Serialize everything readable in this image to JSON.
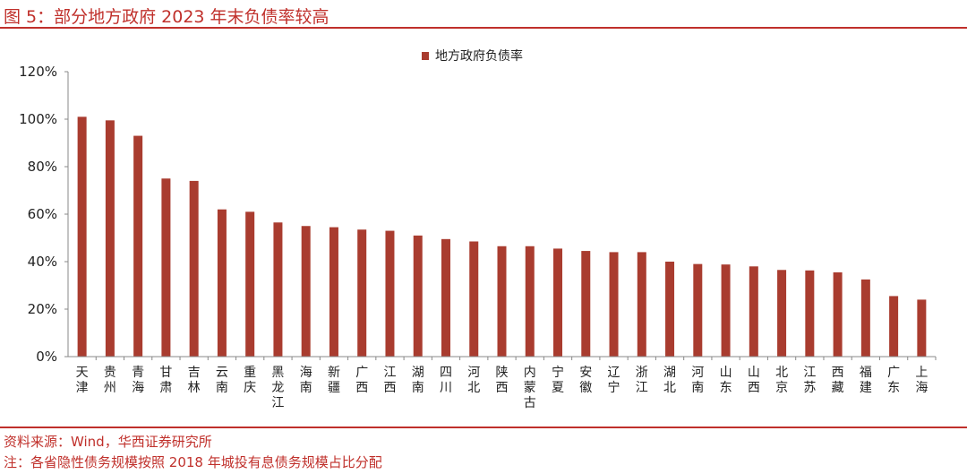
{
  "figure": {
    "title": "图 5：部分地方政府 2023 年末负债率较高",
    "source": "资料来源：Wind，华西证券研究所",
    "note": "注：各省隐性债务规模按照 2018 年城投有息债务规模占比分配"
  },
  "colors": {
    "accent": "#c0302b",
    "bar": "#a93c2f"
  },
  "chart_data": {
    "type": "bar",
    "legend": "地方政府负债率",
    "legend_position": "top",
    "categories": [
      "天津",
      "贵州",
      "青海",
      "甘肃",
      "吉林",
      "云南",
      "重庆",
      "黑龙江",
      "海南",
      "新疆",
      "广西",
      "江西",
      "湖南",
      "四川",
      "河北",
      "陕西",
      "内蒙古",
      "宁夏",
      "安徽",
      "辽宁",
      "浙江",
      "湖北",
      "河南",
      "山东",
      "山西",
      "北京",
      "江苏",
      "西藏",
      "福建",
      "广东",
      "上海"
    ],
    "values": [
      101,
      99.5,
      93,
      75,
      74,
      62,
      61,
      56.5,
      55,
      54.5,
      53.5,
      53,
      51,
      49.5,
      48.5,
      46.5,
      46.5,
      45.5,
      44.5,
      44,
      44,
      40,
      39,
      38.8,
      38,
      36.5,
      36.3,
      35.5,
      32.5,
      25.5,
      24
    ],
    "ylim": [
      0,
      120
    ],
    "yticks": [
      "0%",
      "20%",
      "40%",
      "60%",
      "80%",
      "100%",
      "120%"
    ],
    "grid": false
  }
}
